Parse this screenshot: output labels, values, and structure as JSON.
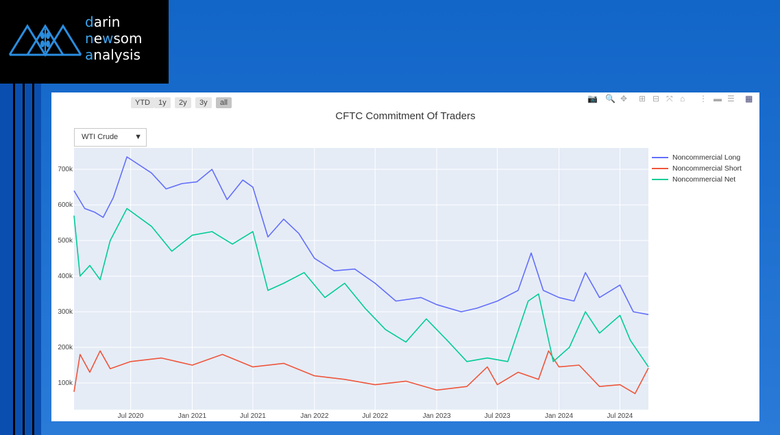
{
  "logo": {
    "line1_accent": "d",
    "line1_rest": "arin",
    "line2_a": "n",
    "line2_b": "e",
    "line2_accent": "w",
    "line2_rest": "som",
    "line3_accent": "a",
    "line3_rest": "nalysis"
  },
  "range_buttons": [
    "YTD",
    "1y",
    "2y",
    "3y",
    "all"
  ],
  "active_range": "all",
  "dropdown": {
    "selected": "WTI Crude"
  },
  "modebar_icons": [
    "camera-icon",
    "zoom-icon",
    "pan-icon",
    "zoom-in-icon",
    "zoom-out-icon",
    "autoscale-icon",
    "home-icon",
    "spike-lines-icon",
    "hover-closest-icon",
    "hover-compare-icon",
    "plotly-logo-icon"
  ],
  "colors": {
    "long": "#636efa",
    "short": "#ef553b",
    "net": "#00cc96"
  },
  "chart_data": {
    "type": "line",
    "title": "CFTC Commitment Of Traders",
    "xlabel": "",
    "ylabel": "",
    "ylim": [
      25000,
      760000
    ],
    "xlim": [
      "2020-01-14",
      "2024-09-24"
    ],
    "x_ticks": [
      "Jul 2020",
      "Jan 2021",
      "Jul 2021",
      "Jan 2022",
      "Jul 2022",
      "Jan 2023",
      "Jul 2023",
      "Jan 2024",
      "Jul 2024"
    ],
    "y_ticks": [
      "100k",
      "200k",
      "300k",
      "400k",
      "500k",
      "600k",
      "700k"
    ],
    "legend_position": "top-right",
    "series": [
      {
        "name": "Noncommercial Long",
        "x": [
          "2020-01-14",
          "2020-02-15",
          "2020-03-15",
          "2020-04-10",
          "2020-05-10",
          "2020-06-20",
          "2020-09-01",
          "2020-10-15",
          "2020-12-01",
          "2021-01-15",
          "2021-03-01",
          "2021-04-15",
          "2021-06-01",
          "2021-07-01",
          "2021-08-15",
          "2021-10-01",
          "2021-11-15",
          "2022-01-01",
          "2022-03-01",
          "2022-05-01",
          "2022-07-01",
          "2022-09-01",
          "2022-11-15",
          "2023-01-01",
          "2023-03-15",
          "2023-05-01",
          "2023-07-01",
          "2023-09-01",
          "2023-10-10",
          "2023-11-15",
          "2024-01-01",
          "2024-02-15",
          "2024-03-20",
          "2024-05-01",
          "2024-07-01",
          "2024-08-10",
          "2024-09-24"
        ],
        "y": [
          640000,
          590000,
          580000,
          565000,
          620000,
          735000,
          690000,
          645000,
          660000,
          665000,
          700000,
          615000,
          670000,
          650000,
          510000,
          560000,
          520000,
          450000,
          415000,
          420000,
          380000,
          330000,
          340000,
          320000,
          300000,
          310000,
          330000,
          360000,
          465000,
          360000,
          340000,
          330000,
          410000,
          340000,
          375000,
          300000,
          292000
        ]
      },
      {
        "name": "Noncommercial Short",
        "x": [
          "2020-01-14",
          "2020-02-01",
          "2020-03-01",
          "2020-04-01",
          "2020-05-01",
          "2020-07-01",
          "2020-10-01",
          "2021-01-01",
          "2021-04-01",
          "2021-07-01",
          "2021-10-01",
          "2022-01-01",
          "2022-04-01",
          "2022-07-01",
          "2022-10-01",
          "2023-01-01",
          "2023-04-01",
          "2023-06-01",
          "2023-07-01",
          "2023-09-01",
          "2023-11-01",
          "2023-12-01",
          "2024-01-01",
          "2024-03-01",
          "2024-05-01",
          "2024-07-01",
          "2024-08-15",
          "2024-09-24"
        ],
        "y": [
          75000,
          180000,
          130000,
          190000,
          140000,
          160000,
          170000,
          150000,
          180000,
          145000,
          155000,
          120000,
          110000,
          95000,
          105000,
          80000,
          90000,
          145000,
          95000,
          130000,
          110000,
          190000,
          145000,
          150000,
          90000,
          95000,
          70000,
          142000
        ]
      },
      {
        "name": "Noncommercial Net",
        "x": [
          "2020-01-14",
          "2020-02-01",
          "2020-03-01",
          "2020-04-01",
          "2020-05-01",
          "2020-06-20",
          "2020-09-01",
          "2020-11-01",
          "2021-01-01",
          "2021-03-01",
          "2021-05-01",
          "2021-07-01",
          "2021-08-15",
          "2021-10-01",
          "2021-12-01",
          "2022-02-01",
          "2022-04-01",
          "2022-06-01",
          "2022-08-01",
          "2022-10-01",
          "2022-12-01",
          "2023-02-01",
          "2023-04-01",
          "2023-06-01",
          "2023-08-01",
          "2023-10-01",
          "2023-11-01",
          "2023-12-15",
          "2024-02-01",
          "2024-03-20",
          "2024-05-01",
          "2024-07-01",
          "2024-08-01",
          "2024-09-24"
        ],
        "y": [
          570000,
          400000,
          430000,
          390000,
          500000,
          590000,
          540000,
          470000,
          515000,
          525000,
          490000,
          525000,
          360000,
          380000,
          410000,
          340000,
          380000,
          310000,
          250000,
          215000,
          280000,
          220000,
          160000,
          170000,
          160000,
          330000,
          350000,
          160000,
          200000,
          300000,
          240000,
          290000,
          220000,
          145000
        ]
      }
    ]
  }
}
